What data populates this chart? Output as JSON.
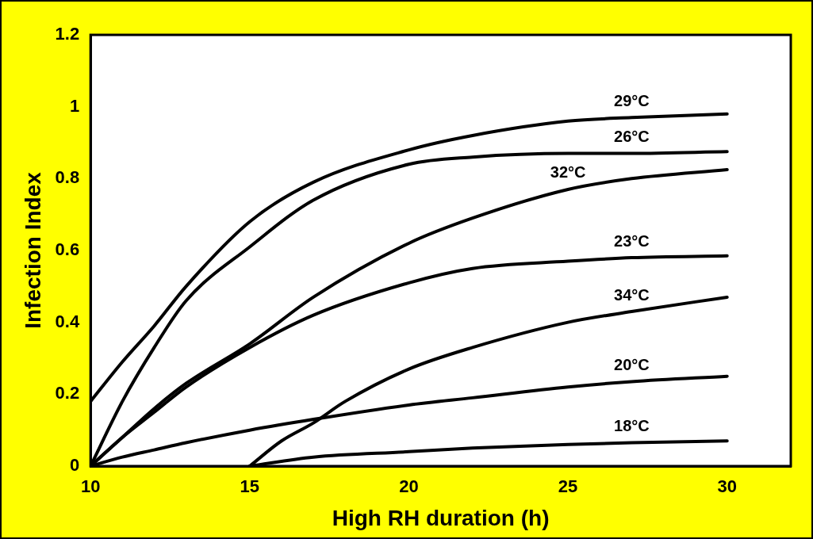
{
  "chart_data": {
    "type": "line",
    "xlabel": "High RH duration (h)",
    "ylabel": "Infection Index",
    "x": [
      10,
      11,
      12,
      13,
      15,
      17,
      20,
      22,
      25,
      27,
      30
    ],
    "series": [
      {
        "name": "29°C",
        "color": "#000000",
        "values": [
          0.18,
          0.29,
          0.39,
          0.5,
          0.68,
          0.79,
          0.88,
          0.92,
          0.96,
          0.97,
          0.98
        ]
      },
      {
        "name": "26°C",
        "color": "#000000",
        "values": [
          0,
          0.18,
          0.33,
          0.46,
          0.61,
          0.74,
          0.84,
          0.86,
          0.87,
          0.87,
          0.875
        ]
      },
      {
        "name": "32°C",
        "color": "#000000",
        "values": [
          0,
          0.08,
          0.16,
          0.23,
          0.34,
          0.47,
          0.62,
          0.69,
          0.77,
          0.8,
          0.825
        ]
      },
      {
        "name": "23°C",
        "color": "#000000",
        "values": [
          0,
          0.08,
          0.15,
          0.22,
          0.33,
          0.42,
          0.51,
          0.55,
          0.57,
          0.58,
          0.585
        ]
      },
      {
        "name": "34°C",
        "color": "#000000",
        "x": [
          15,
          16,
          17,
          18,
          20,
          22,
          25,
          27,
          30
        ],
        "values": [
          0,
          0.07,
          0.12,
          0.18,
          0.27,
          0.33,
          0.4,
          0.43,
          0.47
        ]
      },
      {
        "name": "20°C",
        "color": "#000000",
        "values": [
          0,
          0.025,
          0.045,
          0.065,
          0.1,
          0.13,
          0.17,
          0.19,
          0.22,
          0.235,
          0.25
        ]
      },
      {
        "name": "18°C",
        "color": "#000000",
        "x": [
          15,
          17,
          20,
          22,
          25,
          27,
          30
        ],
        "values": [
          0,
          0.025,
          0.04,
          0.05,
          0.06,
          0.065,
          0.07
        ]
      }
    ],
    "xlim": [
      10,
      32
    ],
    "xticks": [
      10,
      15,
      20,
      25,
      30
    ],
    "ylim": [
      0,
      1.2
    ],
    "yticks": [
      0,
      0.2,
      0.4,
      0.6,
      0.8,
      1,
      1.2
    ],
    "grid": false,
    "legend": false,
    "marker": "none",
    "line_style": "solid"
  }
}
